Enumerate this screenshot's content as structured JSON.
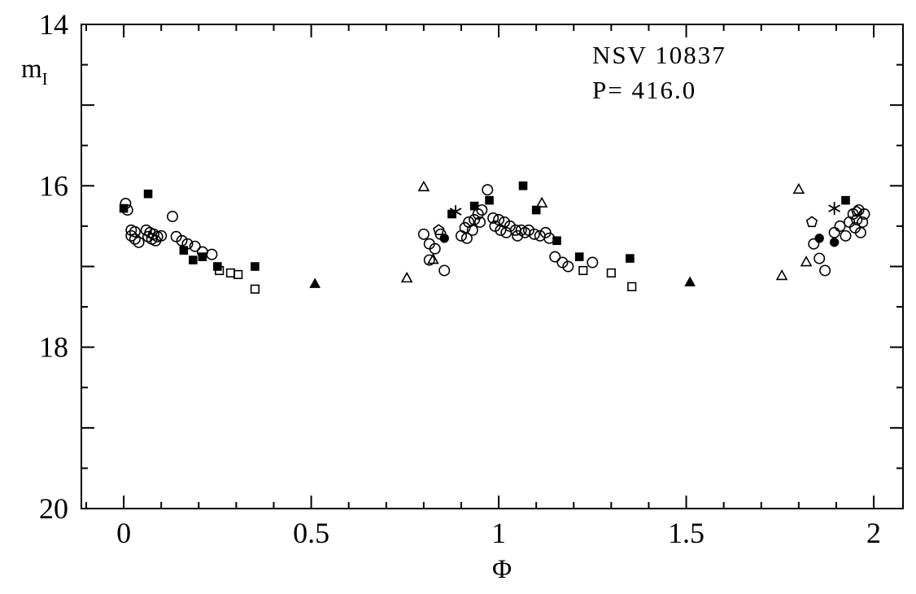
{
  "figure": {
    "title_line1": "NSV 10837",
    "title_line2": "P= 416.0",
    "xlabel": "Φ",
    "ylabel_main": "m",
    "ylabel_sub": "I"
  },
  "chart_data": {
    "type": "scatter",
    "title": "NSV 10837",
    "subtitle": "P= 416.0",
    "xlabel": "Φ",
    "ylabel": "m_I",
    "xlim": [
      -0.113,
      2.078
    ],
    "ylim": [
      14,
      20
    ],
    "y_inverted": true,
    "x_major_ticks": [
      0,
      0.5,
      1,
      1.5,
      2
    ],
    "x_tick_labels": [
      "0",
      "0.5",
      "1",
      "1.5",
      "2"
    ],
    "x_minor_step": 0.1,
    "x_major_step": 0.5,
    "y_major_ticks": [
      14,
      16,
      18,
      20
    ],
    "y_tick_labels": [
      "14",
      "16",
      "18",
      "20"
    ],
    "y_minor_step": 0.5,
    "y_major_step": 1,
    "grid": false,
    "legend": "none",
    "colors": {
      "foreground": "#000000",
      "background": "#ffffff"
    },
    "series": [
      {
        "name": "open-circle",
        "marker": "open-circle",
        "points": [
          [
            0.005,
            16.22
          ],
          [
            0.01,
            16.3
          ],
          [
            0.02,
            16.55
          ],
          [
            0.02,
            16.62
          ],
          [
            0.03,
            16.57
          ],
          [
            0.03,
            16.66
          ],
          [
            0.04,
            16.7
          ],
          [
            0.06,
            16.55
          ],
          [
            0.065,
            16.63
          ],
          [
            0.07,
            16.58
          ],
          [
            0.075,
            16.66
          ],
          [
            0.08,
            16.6
          ],
          [
            0.085,
            16.68
          ],
          [
            0.09,
            16.63
          ],
          [
            0.1,
            16.62
          ],
          [
            0.13,
            16.38
          ],
          [
            0.14,
            16.63
          ],
          [
            0.155,
            16.68
          ],
          [
            0.17,
            16.72
          ],
          [
            0.19,
            16.75
          ],
          [
            0.21,
            16.82
          ],
          [
            0.235,
            16.85
          ],
          [
            0.8,
            16.6
          ],
          [
            0.815,
            16.72
          ],
          [
            0.815,
            16.92
          ],
          [
            0.83,
            16.78
          ],
          [
            0.845,
            16.6
          ],
          [
            0.855,
            17.05
          ],
          [
            0.9,
            16.62
          ],
          [
            0.91,
            16.52
          ],
          [
            0.915,
            16.65
          ],
          [
            0.92,
            16.45
          ],
          [
            0.93,
            16.55
          ],
          [
            0.935,
            16.42
          ],
          [
            0.945,
            16.35
          ],
          [
            0.95,
            16.45
          ],
          [
            0.955,
            16.3
          ],
          [
            0.97,
            16.05
          ],
          [
            0.985,
            16.4
          ],
          [
            0.99,
            16.5
          ],
          [
            1.0,
            16.42
          ],
          [
            1.005,
            16.55
          ],
          [
            1.015,
            16.45
          ],
          [
            1.02,
            16.58
          ],
          [
            1.03,
            16.5
          ],
          [
            1.045,
            16.55
          ],
          [
            1.05,
            16.62
          ],
          [
            1.06,
            16.55
          ],
          [
            1.07,
            16.58
          ],
          [
            1.08,
            16.55
          ],
          [
            1.095,
            16.6
          ],
          [
            1.11,
            16.62
          ],
          [
            1.125,
            16.58
          ],
          [
            1.135,
            16.65
          ],
          [
            1.15,
            16.88
          ],
          [
            1.17,
            16.95
          ],
          [
            1.185,
            17.0
          ],
          [
            1.25,
            16.95
          ],
          [
            1.84,
            16.72
          ],
          [
            1.855,
            16.9
          ],
          [
            1.87,
            17.05
          ],
          [
            1.895,
            16.58
          ],
          [
            1.91,
            16.5
          ],
          [
            1.925,
            16.62
          ],
          [
            1.935,
            16.45
          ],
          [
            1.945,
            16.35
          ],
          [
            1.95,
            16.52
          ],
          [
            1.955,
            16.42
          ],
          [
            1.96,
            16.3
          ],
          [
            1.965,
            16.58
          ],
          [
            1.97,
            16.45
          ],
          [
            1.975,
            16.35
          ]
        ]
      },
      {
        "name": "filled-square",
        "marker": "filled-square",
        "points": [
          [
            0.0,
            16.28
          ],
          [
            0.065,
            16.1
          ],
          [
            0.16,
            16.8
          ],
          [
            0.185,
            16.92
          ],
          [
            0.21,
            16.88
          ],
          [
            0.25,
            17.0
          ],
          [
            0.35,
            17.0
          ],
          [
            0.875,
            16.35
          ],
          [
            0.935,
            16.25
          ],
          [
            0.975,
            16.18
          ],
          [
            1.065,
            16.0
          ],
          [
            1.1,
            16.3
          ],
          [
            1.155,
            16.68
          ],
          [
            1.215,
            16.88
          ],
          [
            1.35,
            16.9
          ],
          [
            1.925,
            16.18
          ]
        ]
      },
      {
        "name": "open-square",
        "marker": "open-square",
        "points": [
          [
            0.255,
            17.05
          ],
          [
            0.285,
            17.08
          ],
          [
            0.305,
            17.1
          ],
          [
            0.35,
            17.28
          ],
          [
            1.225,
            17.05
          ],
          [
            1.3,
            17.08
          ],
          [
            1.355,
            17.25
          ]
        ]
      },
      {
        "name": "open-triangle",
        "marker": "open-triangle",
        "points": [
          [
            0.755,
            17.15
          ],
          [
            0.8,
            16.02
          ],
          [
            0.825,
            16.92
          ],
          [
            1.115,
            16.22
          ],
          [
            1.755,
            17.12
          ],
          [
            1.8,
            16.05
          ],
          [
            1.82,
            16.95
          ]
        ]
      },
      {
        "name": "filled-triangle",
        "marker": "filled-triangle",
        "points": [
          [
            0.51,
            17.22
          ],
          [
            1.51,
            17.2
          ]
        ]
      },
      {
        "name": "open-pentagon",
        "marker": "open-pentagon",
        "points": [
          [
            0.84,
            16.55
          ],
          [
            1.835,
            16.45
          ],
          [
            1.955,
            16.32
          ]
        ]
      },
      {
        "name": "filled-circle",
        "marker": "filled-circle",
        "points": [
          [
            0.855,
            16.65
          ],
          [
            1.855,
            16.65
          ],
          [
            1.895,
            16.7
          ]
        ]
      },
      {
        "name": "asterisk",
        "marker": "asterisk",
        "points": [
          [
            0.885,
            16.32
          ],
          [
            1.895,
            16.28
          ]
        ]
      }
    ]
  }
}
